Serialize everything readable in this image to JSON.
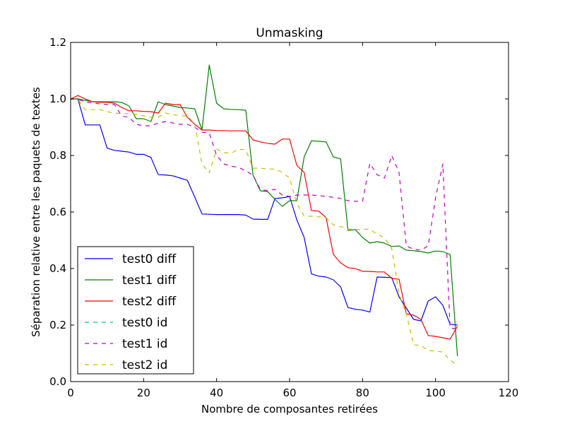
{
  "chart_data": {
    "type": "line",
    "title": "Unmasking",
    "xlabel": "Nombre de composantes retirées",
    "ylabel": "Séparation relative entre les paquets de textes",
    "xlim": [
      0,
      120
    ],
    "ylim": [
      0,
      1.2
    ],
    "xticks": [
      "0",
      "20",
      "40",
      "60",
      "80",
      "100",
      "120"
    ],
    "yticks": [
      "0.0",
      "0.2",
      "0.4",
      "0.6",
      "0.8",
      "1.0",
      "1.2"
    ],
    "grid": false,
    "legend_position": "lower-left",
    "series": [
      {
        "name": "test0 diff",
        "color": "#0000ff",
        "dashed": false,
        "x": [
          0,
          2,
          4,
          6,
          8,
          10,
          12,
          14,
          16,
          18,
          20,
          22,
          24,
          26,
          28,
          30,
          32,
          34,
          36,
          38,
          40,
          42,
          44,
          46,
          48,
          50,
          52,
          54,
          56,
          58,
          60,
          62,
          64,
          66,
          68,
          70,
          72,
          74,
          76,
          78,
          80,
          82,
          84,
          86,
          88,
          90,
          92,
          94,
          96,
          98,
          100,
          102,
          104,
          106
        ],
        "y": [
          1.0,
          1.0,
          0.908,
          0.908,
          0.908,
          0.826,
          0.818,
          0.815,
          0.812,
          0.804,
          0.804,
          0.793,
          0.732,
          0.731,
          0.728,
          0.72,
          0.712,
          0.653,
          0.593,
          0.592,
          0.591,
          0.591,
          0.591,
          0.591,
          0.589,
          0.575,
          0.574,
          0.574,
          0.648,
          0.65,
          0.655,
          0.572,
          0.51,
          0.381,
          0.373,
          0.37,
          0.36,
          0.335,
          0.262,
          0.256,
          0.253,
          0.246,
          0.37,
          0.369,
          0.368,
          0.3,
          0.26,
          0.22,
          0.215,
          0.285,
          0.3,
          0.27,
          0.203,
          0.2
        ]
      },
      {
        "name": "test1 diff",
        "color": "#008000",
        "dashed": false,
        "x": [
          0,
          2,
          4,
          6,
          8,
          10,
          12,
          14,
          16,
          18,
          20,
          22,
          24,
          26,
          28,
          30,
          32,
          34,
          36,
          38,
          40,
          42,
          44,
          46,
          48,
          50,
          52,
          54,
          56,
          58,
          60,
          62,
          64,
          66,
          68,
          70,
          72,
          74,
          76,
          78,
          80,
          82,
          84,
          86,
          88,
          90,
          92,
          94,
          96,
          98,
          100,
          102,
          104,
          106
        ],
        "y": [
          1.0,
          1.0,
          0.995,
          0.99,
          0.99,
          0.99,
          0.99,
          0.988,
          0.975,
          0.93,
          0.93,
          0.92,
          0.99,
          0.98,
          0.975,
          0.97,
          0.968,
          0.965,
          0.89,
          1.12,
          0.985,
          0.965,
          0.963,
          0.962,
          0.96,
          0.73,
          0.675,
          0.672,
          0.645,
          0.62,
          0.64,
          0.64,
          0.795,
          0.852,
          0.85,
          0.848,
          0.795,
          0.788,
          0.535,
          0.538,
          0.51,
          0.49,
          0.495,
          0.49,
          0.478,
          0.48,
          0.465,
          0.463,
          0.46,
          0.455,
          0.462,
          0.46,
          0.45,
          0.09
        ]
      },
      {
        "name": "test2 diff",
        "color": "#ff0000",
        "dashed": false,
        "x": [
          0,
          2,
          4,
          6,
          8,
          10,
          12,
          14,
          16,
          18,
          20,
          22,
          24,
          26,
          28,
          30,
          32,
          34,
          36,
          38,
          40,
          42,
          44,
          46,
          48,
          50,
          52,
          54,
          56,
          58,
          60,
          62,
          64,
          66,
          68,
          70,
          72,
          74,
          76,
          78,
          80,
          82,
          84,
          86,
          88,
          90,
          92,
          94,
          96,
          98,
          100,
          102,
          104,
          106
        ],
        "y": [
          1.0,
          1.012,
          1.0,
          0.99,
          0.988,
          0.988,
          0.985,
          0.97,
          0.958,
          0.958,
          0.956,
          0.955,
          0.95,
          0.985,
          0.98,
          0.98,
          0.935,
          0.91,
          0.89,
          0.89,
          0.888,
          0.888,
          0.887,
          0.887,
          0.887,
          0.855,
          0.848,
          0.843,
          0.84,
          0.858,
          0.858,
          0.765,
          0.74,
          0.605,
          0.603,
          0.58,
          0.45,
          0.42,
          0.403,
          0.4,
          0.39,
          0.39,
          0.388,
          0.388,
          0.365,
          0.362,
          0.24,
          0.235,
          0.22,
          0.163,
          0.16,
          0.155,
          0.15,
          0.196
        ]
      },
      {
        "name": "test0 id",
        "color": "#00bfbf",
        "dashed": true,
        "x": [],
        "y": []
      },
      {
        "name": "test1 id",
        "color": "#bf00bf",
        "dashed": true,
        "x": [
          0,
          2,
          4,
          6,
          8,
          10,
          12,
          14,
          16,
          18,
          20,
          22,
          24,
          26,
          28,
          30,
          32,
          34,
          36,
          38,
          40,
          42,
          44,
          46,
          48,
          50,
          52,
          54,
          56,
          58,
          60,
          62,
          64,
          66,
          68,
          70,
          72,
          74,
          76,
          78,
          80,
          82,
          84,
          86,
          88,
          90,
          92,
          94,
          96,
          98,
          100,
          102,
          104,
          106
        ],
        "y": [
          1.0,
          0.998,
          0.99,
          0.985,
          0.983,
          0.98,
          0.98,
          0.94,
          0.935,
          0.91,
          0.905,
          0.905,
          0.915,
          0.92,
          0.915,
          0.91,
          0.91,
          0.9,
          0.882,
          0.88,
          0.8,
          0.77,
          0.762,
          0.758,
          0.745,
          0.73,
          0.68,
          0.675,
          0.68,
          0.66,
          0.655,
          0.66,
          0.66,
          0.66,
          0.658,
          0.655,
          0.652,
          0.648,
          0.64,
          0.638,
          0.638,
          0.772,
          0.732,
          0.72,
          0.8,
          0.74,
          0.48,
          0.468,
          0.465,
          0.48,
          0.65,
          0.77,
          0.19,
          0.185
        ]
      },
      {
        "name": "test2 id",
        "color": "#bfbf00",
        "dashed": true,
        "x": [
          0,
          2,
          4,
          6,
          8,
          10,
          12,
          14,
          16,
          18,
          20,
          22,
          24,
          26,
          28,
          30,
          32,
          34,
          36,
          38,
          40,
          42,
          44,
          46,
          48,
          50,
          52,
          54,
          56,
          58,
          60,
          62,
          64,
          66,
          68,
          70,
          72,
          74,
          76,
          78,
          80,
          82,
          84,
          86,
          88,
          90,
          92,
          94,
          96,
          98,
          100,
          102,
          104,
          106
        ],
        "y": [
          1.0,
          0.998,
          0.962,
          0.962,
          0.962,
          0.955,
          0.95,
          0.948,
          0.948,
          0.945,
          0.94,
          0.935,
          0.935,
          0.95,
          0.945,
          0.94,
          0.94,
          0.912,
          0.77,
          0.738,
          0.822,
          0.81,
          0.808,
          0.822,
          0.82,
          0.755,
          0.755,
          0.752,
          0.752,
          0.74,
          0.72,
          0.63,
          0.585,
          0.585,
          0.583,
          0.58,
          0.555,
          0.548,
          0.54,
          0.538,
          0.538,
          0.54,
          0.52,
          0.51,
          0.47,
          0.31,
          0.24,
          0.13,
          0.128,
          0.11,
          0.108,
          0.105,
          0.075,
          0.06
        ]
      }
    ]
  }
}
